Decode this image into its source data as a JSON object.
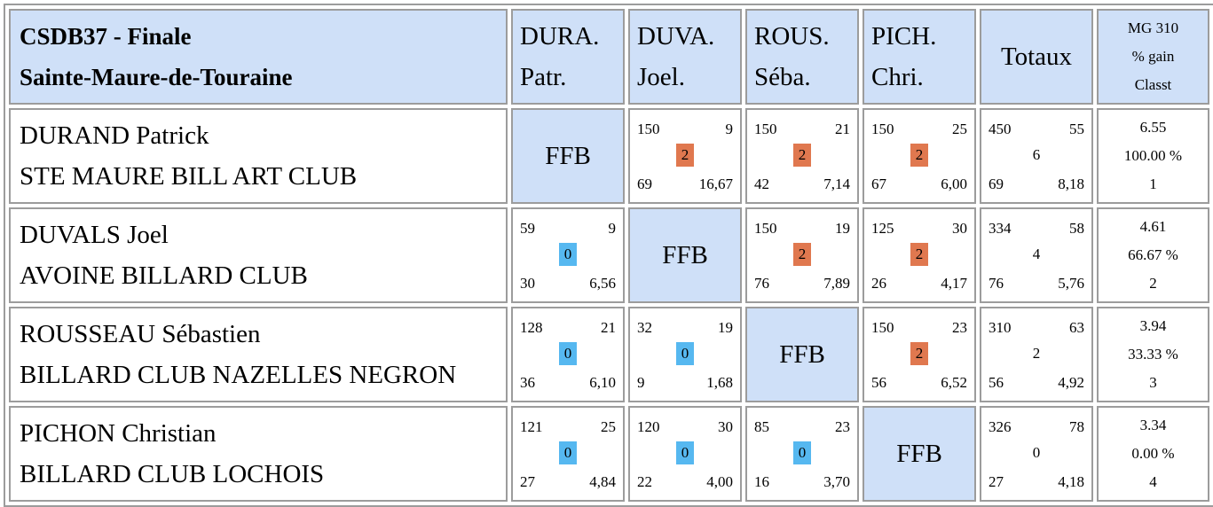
{
  "header": {
    "title_line1": "CSDB37 - Finale",
    "title_line2": "Sainte-Maure-de-Touraine",
    "columns": [
      {
        "line1": "DURA.",
        "line2": "Patr."
      },
      {
        "line1": "DUVA.",
        "line2": "Joel."
      },
      {
        "line1": "ROUS.",
        "line2": "Séba."
      },
      {
        "line1": "PICH.",
        "line2": "Chri."
      }
    ],
    "totals_label": "Totaux",
    "mg_line1": "MG 310",
    "mg_line2": "% gain",
    "mg_line3": "Classt"
  },
  "ffb_label": "FFB",
  "colors": {
    "header_bg": "#cfe0f8",
    "win_badge": "#e0784f",
    "loss_badge": "#56b8f0",
    "border": "#9c9c9c"
  },
  "rows": [
    {
      "name": "DURAND Patrick",
      "club": "STE MAURE BILL ART CLUB",
      "cells": [
        null,
        {
          "points": "150",
          "innings": "9",
          "result": "2",
          "best": "69",
          "avg": "16,67"
        },
        {
          "points": "150",
          "innings": "21",
          "result": "2",
          "best": "42",
          "avg": "7,14"
        },
        {
          "points": "150",
          "innings": "25",
          "result": "2",
          "best": "67",
          "avg": "6,00"
        }
      ],
      "totals": {
        "points": "450",
        "innings": "55",
        "result": "6",
        "best": "69",
        "avg": "8,18"
      },
      "mg": {
        "avg": "6.55",
        "pct": "100.00 %",
        "rank": "1"
      }
    },
    {
      "name": "DUVALS Joel",
      "club": "AVOINE BILLARD CLUB",
      "cells": [
        {
          "points": "59",
          "innings": "9",
          "result": "0",
          "best": "30",
          "avg": "6,56"
        },
        null,
        {
          "points": "150",
          "innings": "19",
          "result": "2",
          "best": "76",
          "avg": "7,89"
        },
        {
          "points": "125",
          "innings": "30",
          "result": "2",
          "best": "26",
          "avg": "4,17"
        }
      ],
      "totals": {
        "points": "334",
        "innings": "58",
        "result": "4",
        "best": "76",
        "avg": "5,76"
      },
      "mg": {
        "avg": "4.61",
        "pct": "66.67 %",
        "rank": "2"
      }
    },
    {
      "name": "ROUSSEAU Sébastien",
      "club": "BILLARD CLUB NAZELLES NEGRON",
      "cells": [
        {
          "points": "128",
          "innings": "21",
          "result": "0",
          "best": "36",
          "avg": "6,10"
        },
        {
          "points": "32",
          "innings": "19",
          "result": "0",
          "best": "9",
          "avg": "1,68"
        },
        null,
        {
          "points": "150",
          "innings": "23",
          "result": "2",
          "best": "56",
          "avg": "6,52"
        }
      ],
      "totals": {
        "points": "310",
        "innings": "63",
        "result": "2",
        "best": "56",
        "avg": "4,92"
      },
      "mg": {
        "avg": "3.94",
        "pct": "33.33 %",
        "rank": "3"
      }
    },
    {
      "name": "PICHON Christian",
      "club": "BILLARD CLUB LOCHOIS",
      "cells": [
        {
          "points": "121",
          "innings": "25",
          "result": "0",
          "best": "27",
          "avg": "4,84"
        },
        {
          "points": "120",
          "innings": "30",
          "result": "0",
          "best": "22",
          "avg": "4,00"
        },
        {
          "points": "85",
          "innings": "23",
          "result": "0",
          "best": "16",
          "avg": "3,70"
        },
        null
      ],
      "totals": {
        "points": "326",
        "innings": "78",
        "result": "0",
        "best": "27",
        "avg": "4,18"
      },
      "mg": {
        "avg": "3.34",
        "pct": "0.00 %",
        "rank": "4"
      }
    }
  ]
}
